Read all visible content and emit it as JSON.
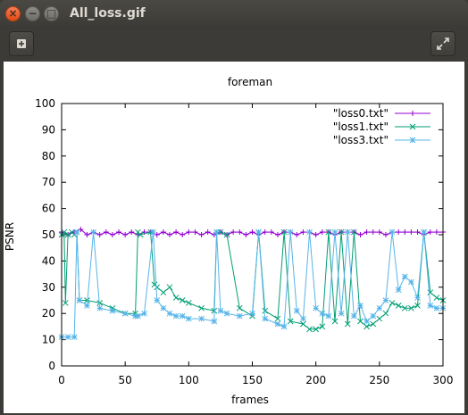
{
  "window": {
    "title": "All_loss.gif",
    "close_glyph": "×",
    "minimize_glyph": "−",
    "maximize_glyph": "□"
  },
  "toolbar": {
    "add_icon": "plus-square-icon",
    "fullscreen_icon": "expand-arrows-icon"
  },
  "chart_data": {
    "type": "line",
    "title": "foreman",
    "xlabel": "frames",
    "ylabel": "PSNR",
    "xlim": [
      0,
      300
    ],
    "ylim": [
      0,
      100
    ],
    "xticks": [
      0,
      50,
      100,
      150,
      200,
      250,
      300
    ],
    "yticks": [
      0,
      10,
      20,
      30,
      40,
      50,
      60,
      70,
      80,
      90,
      100
    ],
    "grid": false,
    "legend_position": "top-right",
    "series": [
      {
        "name": "\"loss0.txt\"",
        "color": "#9400d3",
        "marker": "plus",
        "x": [
          0,
          5,
          10,
          15,
          20,
          25,
          30,
          35,
          40,
          45,
          50,
          55,
          60,
          65,
          70,
          75,
          80,
          85,
          90,
          95,
          100,
          105,
          110,
          115,
          120,
          125,
          130,
          135,
          140,
          145,
          150,
          155,
          160,
          165,
          170,
          175,
          180,
          185,
          190,
          195,
          200,
          205,
          210,
          215,
          220,
          225,
          230,
          235,
          240,
          245,
          250,
          255,
          260,
          265,
          270,
          275,
          280,
          285,
          290,
          295,
          300
        ],
        "y": [
          51,
          50,
          51,
          52,
          50,
          51,
          50,
          51,
          50,
          51,
          50,
          51,
          50,
          51,
          51,
          50,
          51,
          50,
          51,
          50,
          51,
          51,
          50,
          51,
          50,
          51,
          50,
          51,
          51,
          50,
          51,
          50,
          51,
          51,
          50,
          51,
          51,
          50,
          51,
          51,
          50,
          51,
          51,
          50,
          51,
          51,
          51,
          50,
          51,
          51,
          51,
          50,
          51,
          51,
          51,
          51,
          51,
          50,
          51,
          51,
          51
        ]
      },
      {
        "name": "\"loss1.txt\"",
        "color": "#009e73",
        "marker": "cross",
        "x": [
          0,
          2,
          3,
          5,
          8,
          10,
          12,
          14,
          20,
          30,
          40,
          50,
          58,
          60,
          62,
          70,
          73,
          75,
          80,
          85,
          90,
          95,
          100,
          110,
          120,
          122,
          125,
          130,
          140,
          150,
          155,
          160,
          170,
          175,
          180,
          190,
          195,
          200,
          205,
          210,
          215,
          220,
          225,
          230,
          235,
          240,
          245,
          250,
          255,
          260,
          265,
          270,
          275,
          280,
          285,
          290,
          295,
          300
        ],
        "y": [
          50,
          51,
          24,
          50,
          51,
          50,
          51,
          25,
          25,
          24,
          22,
          20,
          20,
          51,
          50,
          51,
          31,
          30,
          28,
          30,
          26,
          25,
          24,
          22,
          21,
          51,
          51,
          50,
          22,
          19,
          51,
          21,
          18,
          51,
          17,
          16,
          14,
          14,
          15,
          51,
          17,
          51,
          16,
          51,
          17,
          15,
          16,
          18,
          20,
          24,
          23,
          22,
          22,
          23,
          51,
          28,
          26,
          25
        ]
      },
      {
        "name": "\"loss3.txt\"",
        "color": "#56b4e9",
        "marker": "star",
        "x": [
          0,
          5,
          10,
          12,
          14,
          20,
          25,
          30,
          40,
          50,
          58,
          60,
          65,
          72,
          75,
          80,
          85,
          90,
          95,
          100,
          110,
          120,
          122,
          125,
          130,
          140,
          150,
          155,
          160,
          170,
          175,
          180,
          185,
          190,
          195,
          200,
          205,
          210,
          215,
          220,
          225,
          230,
          235,
          240,
          245,
          250,
          255,
          260,
          265,
          270,
          275,
          280,
          285,
          290,
          295,
          300
        ],
        "y": [
          11,
          11,
          11,
          51,
          25,
          23,
          51,
          22,
          21,
          20,
          19,
          19,
          20,
          51,
          25,
          22,
          20,
          19,
          19,
          18,
          18,
          17,
          51,
          21,
          20,
          19,
          20,
          51,
          18,
          16,
          15,
          51,
          21,
          18,
          51,
          22,
          20,
          19,
          51,
          20,
          51,
          19,
          23,
          17,
          19,
          22,
          25,
          51,
          29,
          34,
          32,
          26,
          51,
          23,
          22,
          22
        ]
      }
    ]
  }
}
